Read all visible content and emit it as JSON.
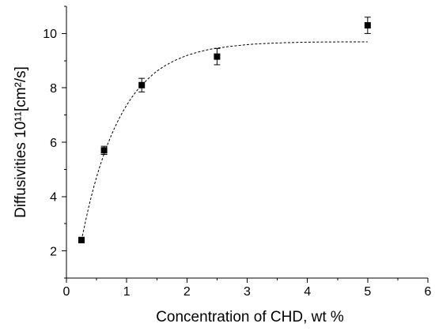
{
  "chart_data": {
    "type": "scatter",
    "xlabel": "Concentration of CHD, wt %",
    "ylabel": "Diffusivities 10¹¹[cm²/s]",
    "xlim": [
      0,
      6
    ],
    "ylim": [
      1,
      11
    ],
    "xticks": [
      0,
      1,
      2,
      3,
      4,
      5,
      6
    ],
    "yticks": [
      2,
      4,
      6,
      8,
      10
    ],
    "grid": false,
    "series": [
      {
        "type": "scatter",
        "marker": "square",
        "color": "#000000",
        "x": [
          0.25,
          0.625,
          1.25,
          2.5,
          5.0
        ],
        "y": [
          2.4,
          5.7,
          8.1,
          9.15,
          10.3
        ],
        "yerr": [
          0.1,
          0.15,
          0.25,
          0.3,
          0.3
        ]
      },
      {
        "type": "line",
        "dashed": true,
        "color": "#000000",
        "x": [
          0.25,
          0.375,
          0.5,
          0.625,
          0.75,
          0.875,
          1.0,
          1.125,
          1.25,
          1.5,
          1.75,
          2.0,
          2.25,
          2.5,
          3.0,
          3.5,
          4.0,
          4.5,
          5.0
        ],
        "y": [
          2.4,
          3.66,
          4.71,
          5.57,
          6.28,
          6.87,
          7.36,
          7.77,
          8.1,
          8.61,
          8.95,
          9.19,
          9.35,
          9.46,
          9.59,
          9.65,
          9.68,
          9.69,
          9.69
        ]
      }
    ]
  }
}
